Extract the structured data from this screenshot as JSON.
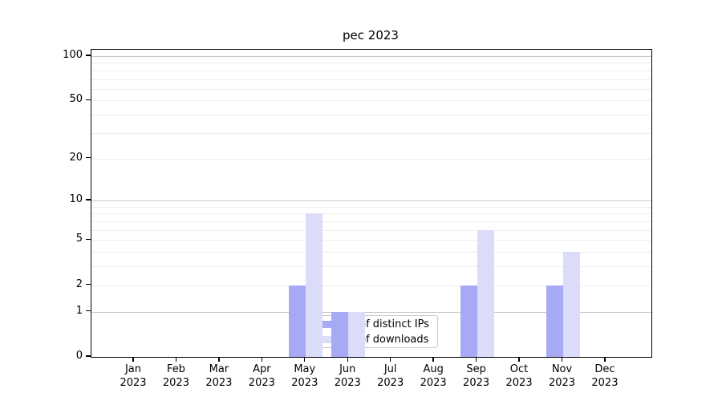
{
  "title": "pec 2023",
  "chart_data": {
    "type": "bar",
    "x_axis": {
      "months": [
        "Jan",
        "Feb",
        "Mar",
        "Apr",
        "May",
        "Jun",
        "Jul",
        "Aug",
        "Sep",
        "Oct",
        "Nov",
        "Dec"
      ],
      "year": "2023"
    },
    "y_axis": {
      "scale": "log1p",
      "ticks": [
        0,
        1,
        2,
        5,
        10,
        20,
        50,
        100
      ],
      "minor_ticks": [
        3,
        4,
        6,
        7,
        8,
        9,
        30,
        40,
        60,
        70,
        80,
        90
      ],
      "emphasized_gridlines": [
        1,
        10,
        100
      ],
      "ymin": 0,
      "ymax": 110
    },
    "series": [
      {
        "name": "Nb of distinct IPs",
        "color": "#a6a9f3",
        "values": [
          0,
          0,
          0,
          0,
          2,
          1,
          0,
          0,
          2,
          0,
          2,
          0
        ]
      },
      {
        "name": "Nb of downloads",
        "color": "#dadcf9",
        "values": [
          0,
          0,
          0,
          0,
          8,
          1,
          0,
          0,
          6,
          0,
          4,
          0
        ]
      }
    ],
    "legend_entries": [
      "Nb of distinct IPs",
      "Nb of downloads"
    ]
  },
  "colors": {
    "grid_strong": "#c6c6c6",
    "grid_light": "#ededed",
    "axis": "#000000",
    "background": "#ffffff"
  }
}
